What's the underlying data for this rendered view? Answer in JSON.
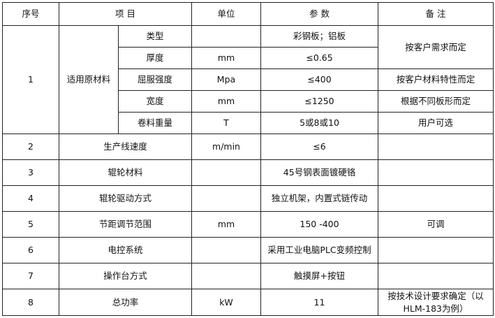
{
  "header": {
    "no": "序号",
    "item": "项 目",
    "unit": "单位",
    "param": "参 数",
    "remark": "备 注"
  },
  "material": {
    "no": "1",
    "label": "适用原材料",
    "rows": [
      {
        "name": "类型",
        "unit": "",
        "param": "彩钢板；铝板"
      },
      {
        "name": "厚度",
        "unit": "mm",
        "param": "≤0.65"
      },
      {
        "name": "屈服强度",
        "unit": "Mpa",
        "param": "≤400"
      },
      {
        "name": "宽度",
        "unit": "mm",
        "param": "≤1250"
      },
      {
        "name": "卷料重量",
        "unit": "T",
        "param": "5或8或10"
      }
    ],
    "remarks": [
      "按客户需求而定",
      "按客户材料特性而定",
      "根据不同板形而定",
      "用户可选"
    ]
  },
  "rows": [
    {
      "no": "2",
      "item": "生产线速度",
      "unit": "m/min",
      "param": "≤6",
      "remark": ""
    },
    {
      "no": "3",
      "item": "辊轮材料",
      "unit": "",
      "param": "45号钢表面镀硬铬",
      "remark": ""
    },
    {
      "no": "4",
      "item": "辊轮驱动方式",
      "unit": "",
      "param": "独立机架，内置式链传动",
      "remark": ""
    },
    {
      "no": "5",
      "item": "节距调节范围",
      "unit": "mm",
      "param": "150 -400",
      "remark": "可调"
    },
    {
      "no": "6",
      "item": "电控系统",
      "unit": "",
      "param": "采用工业电脑PLC变频控制",
      "remark": ""
    },
    {
      "no": "7",
      "item": "操作台方式",
      "unit": "",
      "param": "触摸屏+按钮",
      "remark": ""
    },
    {
      "no": "8",
      "item": "总功率",
      "unit": "kW",
      "param": "11",
      "remark": "按技术设计要求确定（以HLM-183为例）"
    }
  ]
}
